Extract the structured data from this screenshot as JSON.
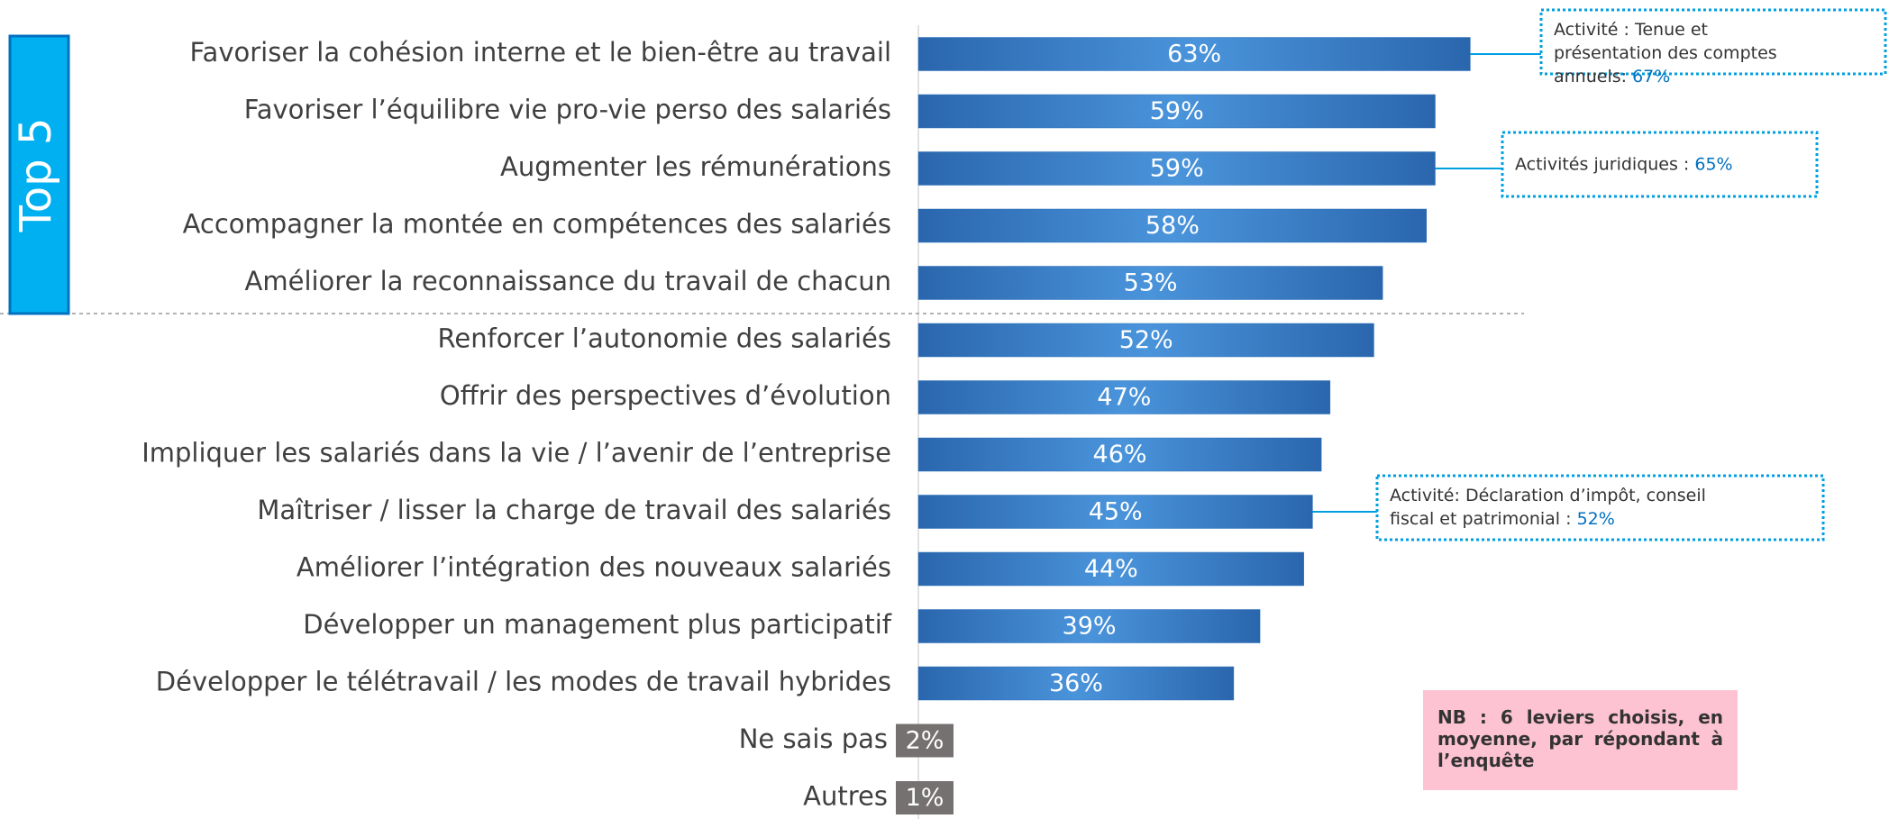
{
  "chart_data": {
    "type": "bar",
    "orientation": "horizontal",
    "categories": [
      "Favoriser la cohésion interne et le bien-être au travail",
      "Favoriser l’équilibre vie pro-vie perso des salariés",
      "Augmenter les rémunérations",
      "Accompagner la montée en compétences des salariés",
      "Améliorer la reconnaissance du travail de chacun",
      "Renforcer l’autonomie des salariés",
      "Offrir des perspectives d’évolution",
      "Impliquer les salariés dans la vie / l’avenir de l’entreprise",
      "Maîtriser / lisser la charge de travail des salariés",
      "Améliorer l’intégration des nouveaux salariés",
      "Développer un management plus participatif",
      "Développer le télétravail / les modes de travail hybrides",
      "Ne sais pas",
      "Autres"
    ],
    "values": [
      63,
      59,
      59,
      58,
      53,
      52,
      47,
      46,
      45,
      44,
      39,
      36,
      2,
      1
    ],
    "value_labels": [
      "63%",
      "59%",
      "59%",
      "58%",
      "53%",
      "52%",
      "47%",
      "46%",
      "45%",
      "44%",
      "39%",
      "36%",
      "2%",
      "1%"
    ],
    "colors": [
      "#2f72bd",
      "#2f72bd",
      "#2f72bd",
      "#2f72bd",
      "#2f72bd",
      "#2f72bd",
      "#2f72bd",
      "#2f72bd",
      "#2f72bd",
      "#2f72bd",
      "#2f72bd",
      "#2f72bd",
      "#767171",
      "#767171"
    ],
    "xlim": [
      0,
      100
    ],
    "group_label": "Top 5",
    "annotations": [
      {
        "text": "Activité : Tenue et présentation des comptes annuels:",
        "value_label": "67%"
      },
      {
        "text": "Activités juridiques :",
        "value_label": "65%"
      },
      {
        "text": "Activité: Déclaration d’impôt, conseil fiscal et patrimonial :",
        "value_label": "52%"
      }
    ],
    "note": "NB : 6 leviers choisis, en moyenne, par répondant à l’enquête"
  }
}
